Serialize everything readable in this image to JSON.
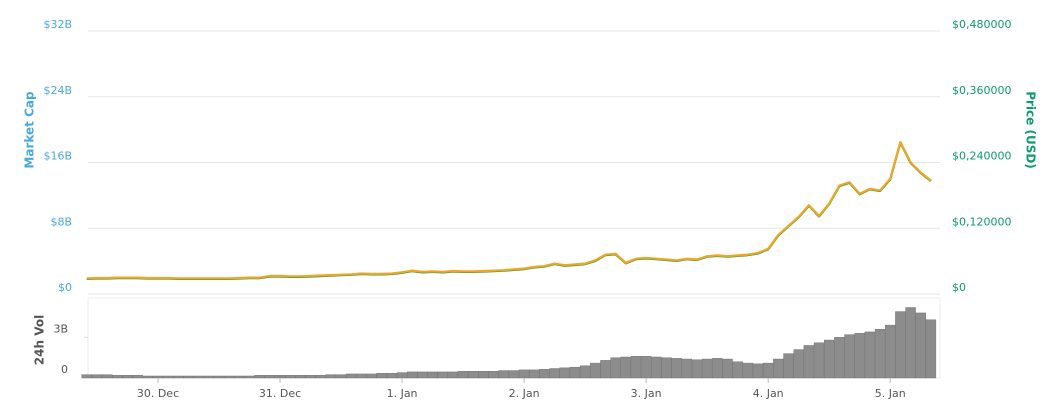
{
  "chart_data": [
    {
      "type": "line",
      "y_label": "Market Cap",
      "y2_label": "Price (USD)",
      "ylim": [
        0,
        32
      ],
      "yticks": [
        {
          "value": 0,
          "label": "$0"
        },
        {
          "value": 8,
          "label": "$8B"
        },
        {
          "value": 16,
          "label": "$16B"
        },
        {
          "value": 24,
          "label": "$24B"
        },
        {
          "value": 32,
          "label": "$32B"
        }
      ],
      "y2lim": [
        0,
        0.48
      ],
      "y2ticks": [
        {
          "value": 0,
          "label": "$0"
        },
        {
          "value": 0.12,
          "label": "$0,120000"
        },
        {
          "value": 0.24,
          "label": "$0,240000"
        },
        {
          "value": 0.36,
          "label": "$0,360000"
        },
        {
          "value": 0.48,
          "label": "$0,480000"
        }
      ],
      "grid": true,
      "series": [
        {
          "color": "#0e9a6c",
          "axis": "y2",
          "values": [
            0.0275,
            0.02825,
            0.02825,
            0.029,
            0.029,
            0.029,
            0.02825,
            0.02825,
            0.02825,
            0.0275,
            0.0275,
            0.0275,
            0.0275,
            0.0275,
            0.0275,
            0.02825,
            0.029,
            0.029,
            0.032,
            0.032,
            0.03125,
            0.03125,
            0.032,
            0.03275,
            0.0335,
            0.03425,
            0.035,
            0.0365,
            0.03575,
            0.03575,
            0.0365,
            0.03875,
            0.04175,
            0.0395,
            0.04025,
            0.0395,
            0.041,
            0.04025,
            0.04025,
            0.041,
            0.04175,
            0.0425,
            0.044,
            0.0455,
            0.0485,
            0.05,
            0.0545,
            0.0515,
            0.053,
            0.0545,
            0.0605,
            0.071,
            0.0725,
            0.056,
            0.0635,
            0.065,
            0.0635,
            0.062,
            0.0605,
            0.0635,
            0.062,
            0.068,
            0.0695,
            0.068,
            0.0695,
            0.071,
            0.074,
            0.0815,
            0.107,
            0.1235,
            0.14,
            0.161,
            0.1415,
            0.164,
            0.197,
            0.203,
            0.182,
            0.191,
            0.188,
            0.209,
            0.2765,
            0.239,
            0.221,
            0.206
          ]
        },
        {
          "color": "#f4a51c",
          "values": [
            1.9,
            1.95,
            1.95,
            2.0,
            2.0,
            2.0,
            1.95,
            1.95,
            1.95,
            1.9,
            1.9,
            1.9,
            1.9,
            1.9,
            1.9,
            1.95,
            2.0,
            2.0,
            2.2,
            2.2,
            2.15,
            2.15,
            2.2,
            2.25,
            2.3,
            2.35,
            2.4,
            2.5,
            2.45,
            2.45,
            2.5,
            2.65,
            2.85,
            2.7,
            2.75,
            2.7,
            2.8,
            2.75,
            2.75,
            2.8,
            2.85,
            2.9,
            3.0,
            3.1,
            3.3,
            3.4,
            3.7,
            3.5,
            3.6,
            3.7,
            4.1,
            4.8,
            4.9,
            3.8,
            4.3,
            4.4,
            4.3,
            4.2,
            4.1,
            4.3,
            4.2,
            4.6,
            4.7,
            4.6,
            4.7,
            4.8,
            5.0,
            5.5,
            7.2,
            8.3,
            9.4,
            10.8,
            9.5,
            11.0,
            13.2,
            13.6,
            12.2,
            12.8,
            12.6,
            14.0,
            18.5,
            16.0,
            14.8,
            13.8
          ]
        }
      ]
    },
    {
      "type": "bar",
      "y_label": "24h Vol",
      "color": "#8c8c8c",
      "ylim": [
        0,
        5.9
      ],
      "yticks": [
        0,
        {
          "value": 3,
          "label": "3B"
        }
      ],
      "categories": [
        null,
        null,
        null,
        null,
        null,
        null,
        null,
        "30. Dec",
        null,
        null,
        null,
        null,
        null,
        null,
        null,
        null,
        null,
        null,
        null,
        "31. Dec",
        null,
        null,
        null,
        null,
        null,
        null,
        null,
        null,
        null,
        null,
        null,
        "1. Jan",
        null,
        null,
        null,
        null,
        null,
        null,
        null,
        null,
        null,
        null,
        null,
        "2. Jan",
        null,
        null,
        null,
        null,
        null,
        null,
        null,
        null,
        null,
        null,
        null,
        "3. Jan",
        null,
        null,
        null,
        null,
        null,
        null,
        null,
        null,
        null,
        null,
        null,
        "4. Jan",
        null,
        null,
        null,
        null,
        null,
        null,
        null,
        null,
        null,
        null,
        null,
        "5. Jan",
        null,
        null,
        null,
        null
      ],
      "values": [
        0.25,
        0.25,
        0.25,
        0.2,
        0.2,
        0.2,
        0.15,
        0.15,
        0.15,
        0.15,
        0.15,
        0.15,
        0.15,
        0.15,
        0.15,
        0.15,
        0.15,
        0.2,
        0.2,
        0.2,
        0.2,
        0.2,
        0.2,
        0.2,
        0.25,
        0.25,
        0.3,
        0.3,
        0.3,
        0.35,
        0.35,
        0.4,
        0.45,
        0.45,
        0.45,
        0.45,
        0.45,
        0.5,
        0.5,
        0.5,
        0.5,
        0.55,
        0.55,
        0.6,
        0.6,
        0.65,
        0.7,
        0.75,
        0.8,
        0.9,
        1.1,
        1.3,
        1.5,
        1.55,
        1.6,
        1.6,
        1.55,
        1.5,
        1.45,
        1.4,
        1.35,
        1.4,
        1.45,
        1.4,
        1.2,
        1.1,
        1.05,
        1.1,
        1.4,
        1.8,
        2.1,
        2.4,
        2.6,
        2.8,
        3.0,
        3.2,
        3.3,
        3.4,
        3.6,
        3.9,
        4.9,
        5.2,
        4.8,
        4.3
      ]
    }
  ]
}
